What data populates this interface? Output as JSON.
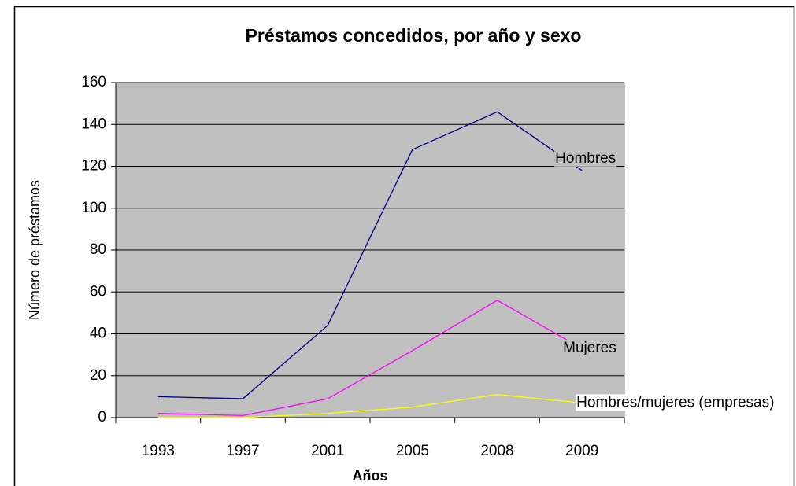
{
  "chart_data": {
    "type": "line",
    "title": "Préstamos concedidos, por año y sexo",
    "x_label": "Años",
    "y_label": "Número de préstamos",
    "categories": [
      "1993",
      "1997",
      "2001",
      "2005",
      "2008",
      "2009"
    ],
    "series": [
      {
        "name": "Hombres",
        "color": "#000080",
        "values": [
          10,
          9,
          44,
          128,
          146,
          118
        ]
      },
      {
        "name": "Mujeres",
        "color": "#ff00ff",
        "values": [
          2,
          1,
          9,
          32,
          56,
          33
        ]
      },
      {
        "name": "Hombres/mujeres (empresas)",
        "color": "#ffff00",
        "values": [
          0,
          0,
          2,
          5,
          11,
          7
        ]
      }
    ],
    "ylim": [
      0,
      160
    ],
    "yticks": [
      0,
      20,
      40,
      60,
      80,
      100,
      120,
      140,
      160
    ],
    "grid": true,
    "plot_background": "#c0c0c0"
  }
}
